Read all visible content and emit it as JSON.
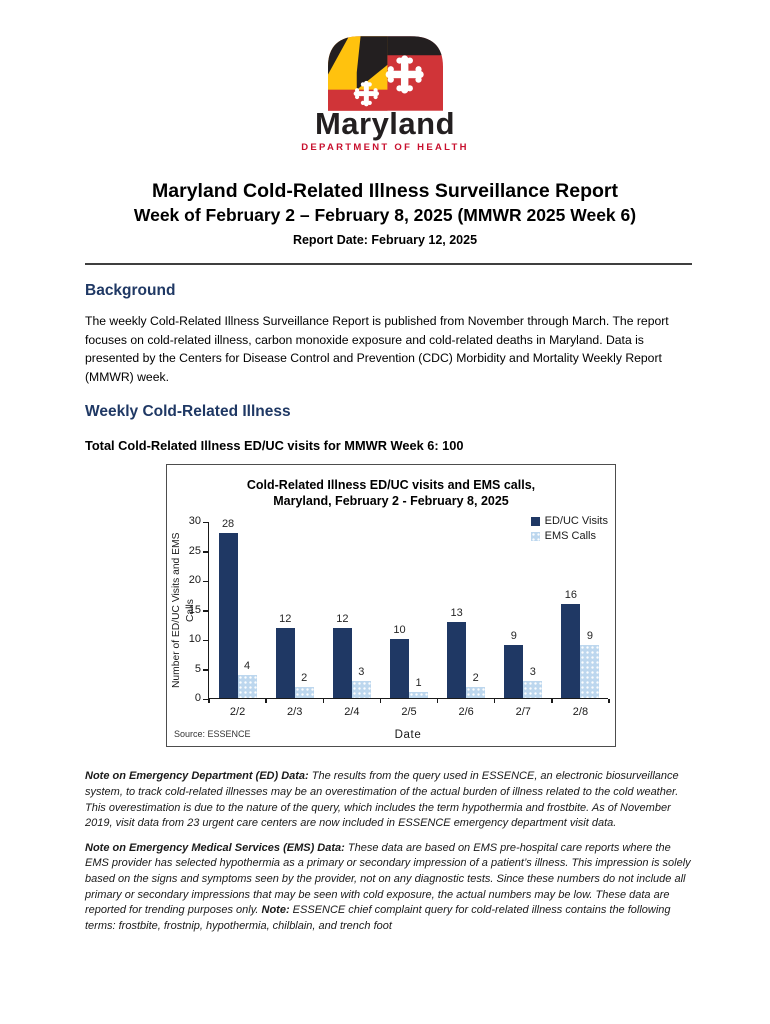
{
  "logo": {
    "brand": "Maryland",
    "department": "DEPARTMENT OF HEALTH",
    "colors": {
      "red": "#D03438",
      "yellow": "#FFC20E",
      "black": "#231F20",
      "dept_red": "#C8102E"
    }
  },
  "header": {
    "title": "Maryland Cold-Related Illness Surveillance Report",
    "subtitle": "Week of February 2 – February 8, 2025 (MMWR 2025 Week 6)",
    "report_date": "Report Date: February 12, 2025"
  },
  "background": {
    "heading": "Background",
    "body": "The weekly Cold-Related Illness Surveillance Report is published from November through March. The report focuses on cold-related illness, carbon monoxide exposure and cold-related deaths in Maryland. Data is presented by the Centers for Disease Control and Prevention (CDC) Morbidity and Mortality Weekly Report (MMWR) week."
  },
  "weekly": {
    "heading": "Weekly Cold-Related Illness",
    "total_line": "Total Cold-Related Illness ED/UC visits for MMWR Week 6: 100"
  },
  "chart_data": {
    "type": "bar",
    "title": "Cold-Related Illness ED/UC visits and EMS calls, Maryland, February 2 - February 8, 2025",
    "title_lines": [
      "Cold-Related Illness ED/UC visits and EMS calls,",
      "Maryland, February 2 - February 8, 2025"
    ],
    "categories": [
      "2/2",
      "2/3",
      "2/4",
      "2/5",
      "2/6",
      "2/7",
      "2/8"
    ],
    "series": [
      {
        "name": "ED/UC Visits",
        "values": [
          28,
          12,
          12,
          10,
          13,
          9,
          16
        ],
        "color": "#1F3864",
        "pattern": "solid"
      },
      {
        "name": "EMS Calls",
        "values": [
          4,
          2,
          3,
          1,
          2,
          3,
          9
        ],
        "color": "#BDD7EE",
        "pattern": "dots"
      }
    ],
    "xlabel": "Date",
    "ylabel": "Number of ED/UC Visits and EMS Calls",
    "ylim": [
      0,
      30
    ],
    "yticks": [
      0,
      5,
      10,
      15,
      20,
      25,
      30
    ],
    "grid": false,
    "data_labels": true,
    "legend_position": "top-right",
    "source": "Source: ESSENCE"
  },
  "notes": {
    "ed": {
      "label": "Note on Emergency Department (ED) Data:",
      "text": " The results from the query used in ESSENCE, an electronic biosurveillance system, to track cold-related illnesses may be an overestimation of the actual burden of illness related to the cold weather. This overestimation is due to the nature of the query, which includes the term hypothermia and frostbite. As of November 2019, visit data from 23 urgent care centers are now included in ESSENCE emergency department visit data."
    },
    "ems": {
      "label": "Note on Emergency Medical Services (EMS) Data:",
      "text_before_note": " These data are based on EMS pre-hospital care reports where the EMS provider has selected hypothermia as a primary or secondary impression of a patient’s illness. This impression is solely based on the signs and symptoms seen by the provider, not on any diagnostic tests. Since these numbers do not include all primary or secondary impressions that may be seen with cold exposure, the actual numbers may be low. These data are reported for trending purposes only. ",
      "note_label": "Note:",
      "text_after_note": " ESSENCE chief complaint query for cold-related illness contains the following terms: frostbite, frostnip, hypothermia, chilblain, and trench foot"
    }
  }
}
